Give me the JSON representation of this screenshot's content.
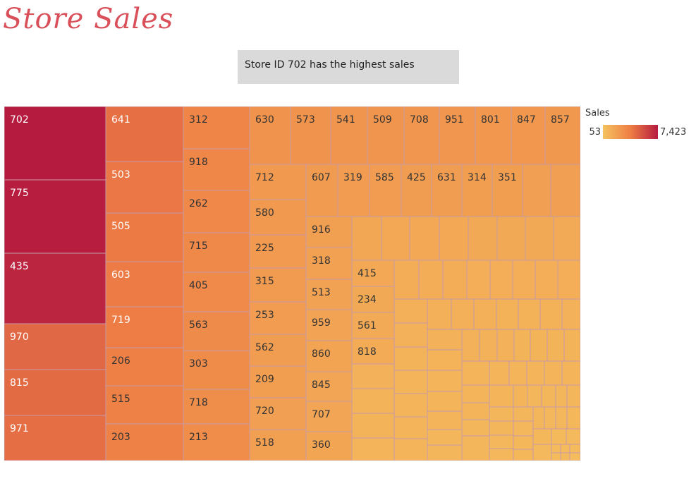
{
  "page": {
    "title": "Store Sales",
    "note": "Store ID 702 has the highest sales"
  },
  "legend": {
    "title": "Sales",
    "min_label": "53",
    "max_label": "7,423",
    "min_value": 53,
    "max_value": 7423,
    "color_low": "#f5c25f",
    "color_mid": "#ee7e45",
    "color_high": "#b51b3f"
  },
  "chart_data": {
    "type": "treemap",
    "title": "Store Sales",
    "color_measure": "Sales",
    "color_range": [
      53,
      7423
    ],
    "stores": [
      {
        "id": "702",
        "sales": 7423
      },
      {
        "id": "775",
        "sales": 7350
      },
      {
        "id": "435",
        "sales": 7050
      },
      {
        "id": "970",
        "sales": 4550
      },
      {
        "id": "815",
        "sales": 4450
      },
      {
        "id": "971",
        "sales": 4350
      },
      {
        "id": "641",
        "sales": 4250
      },
      {
        "id": "503",
        "sales": 4000
      },
      {
        "id": "505",
        "sales": 3900
      },
      {
        "id": "603",
        "sales": 3850
      },
      {
        "id": "719",
        "sales": 3800
      },
      {
        "id": "206",
        "sales": 3650
      },
      {
        "id": "515",
        "sales": 3600
      },
      {
        "id": "203",
        "sales": 3550
      },
      {
        "id": "312",
        "sales": 3300
      },
      {
        "id": "918",
        "sales": 3250
      },
      {
        "id": "262",
        "sales": 3200
      },
      {
        "id": "715",
        "sales": 3150
      },
      {
        "id": "405",
        "sales": 3100
      },
      {
        "id": "563",
        "sales": 3050
      },
      {
        "id": "303",
        "sales": 3000
      },
      {
        "id": "718",
        "sales": 2950
      },
      {
        "id": "213",
        "sales": 2900
      },
      {
        "id": "630",
        "sales": 2600
      },
      {
        "id": "573",
        "sales": 2550
      },
      {
        "id": "541",
        "sales": 2500
      },
      {
        "id": "509",
        "sales": 2500
      },
      {
        "id": "708",
        "sales": 2450
      },
      {
        "id": "951",
        "sales": 2450
      },
      {
        "id": "801",
        "sales": 2400
      },
      {
        "id": "847",
        "sales": 2400
      },
      {
        "id": "857",
        "sales": 2350
      },
      {
        "id": "712",
        "sales": 2300
      },
      {
        "id": "580",
        "sales": 2250
      },
      {
        "id": "225",
        "sales": 2200
      },
      {
        "id": "315",
        "sales": 2150
      },
      {
        "id": "253",
        "sales": 2100
      },
      {
        "id": "562",
        "sales": 2050
      },
      {
        "id": "209",
        "sales": 2000
      },
      {
        "id": "720",
        "sales": 1950
      },
      {
        "id": "518",
        "sales": 1900
      },
      {
        "id": "607",
        "sales": 2150
      },
      {
        "id": "319",
        "sales": 2100
      },
      {
        "id": "585",
        "sales": 2100
      },
      {
        "id": "425",
        "sales": 2050
      },
      {
        "id": "631",
        "sales": 2050
      },
      {
        "id": "314",
        "sales": 2000
      },
      {
        "id": "351",
        "sales": 2000
      },
      {
        "id": "916",
        "sales": 1900
      },
      {
        "id": "318",
        "sales": 1850
      },
      {
        "id": "513",
        "sales": 1800
      },
      {
        "id": "959",
        "sales": 1750
      },
      {
        "id": "860",
        "sales": 1700
      },
      {
        "id": "845",
        "sales": 1650
      },
      {
        "id": "707",
        "sales": 1600
      },
      {
        "id": "360",
        "sales": 1550
      },
      {
        "id": "415",
        "sales": 1450
      },
      {
        "id": "234",
        "sales": 1400
      },
      {
        "id": "561",
        "sales": 1350
      },
      {
        "id": "818",
        "sales": 1300
      }
    ]
  }
}
